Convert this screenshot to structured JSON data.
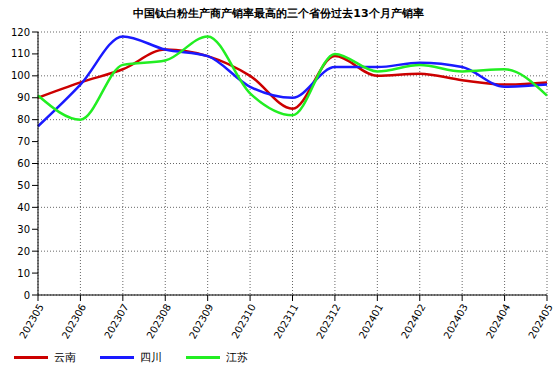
{
  "chart_data": {
    "type": "line",
    "title": "中国钛白粉生产商产销率最高的三个省份过去13个月产销率",
    "categories": [
      "202305",
      "202306",
      "202307",
      "202308",
      "202309",
      "202310",
      "202311",
      "202312",
      "202401",
      "202402",
      "202403",
      "202404",
      "202405"
    ],
    "series": [
      {
        "name": "云南",
        "color": "#cc0000",
        "values": [
          90,
          97,
          103,
          112,
          109,
          100,
          85,
          109,
          100,
          101,
          98,
          96,
          97
        ]
      },
      {
        "name": "四川",
        "color": "#1a1aff",
        "values": [
          77,
          96,
          118,
          112,
          109,
          95,
          90,
          104,
          104,
          106,
          104,
          95,
          96
        ]
      },
      {
        "name": "江苏",
        "color": "#22ee22",
        "values": [
          91,
          80,
          105,
          107,
          118,
          92,
          82,
          110,
          102,
          105,
          102,
          103,
          91
        ]
      }
    ],
    "ylim": [
      0,
      120
    ],
    "yticks": [
      0,
      10,
      20,
      30,
      40,
      50,
      60,
      70,
      80,
      90,
      100,
      110,
      120
    ],
    "grid": true
  }
}
